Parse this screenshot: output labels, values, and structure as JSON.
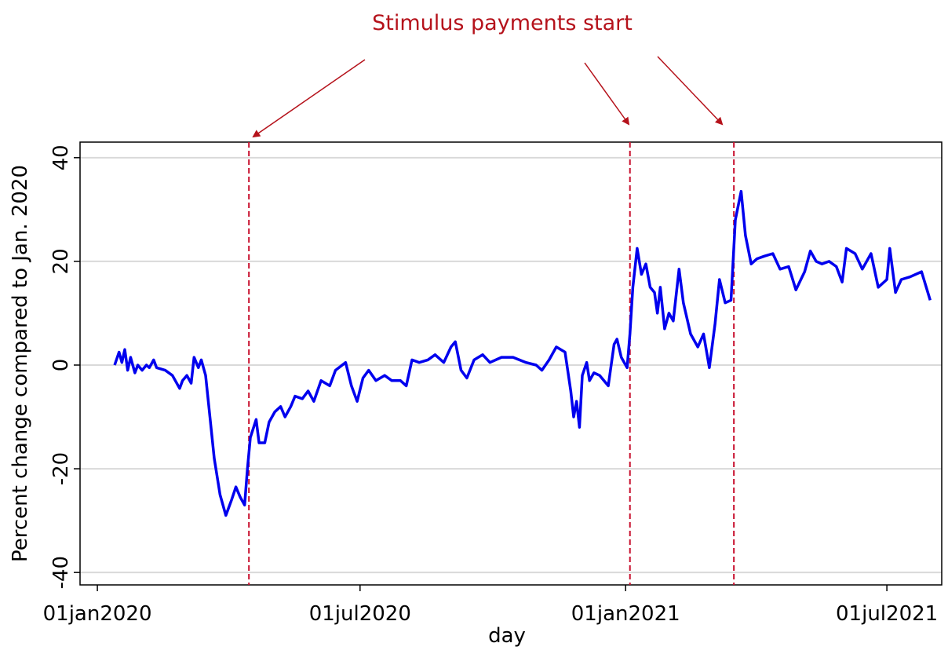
{
  "chart_data": {
    "type": "line",
    "annotation": "Stimulus payments start",
    "xlabel": "day",
    "ylabel": "Percent change compared to Jan. 2020",
    "xlim": [
      "2019-12-20",
      "2021-08-08"
    ],
    "xticks": [
      {
        "value": "2020-01-01",
        "label": "01jan2020"
      },
      {
        "value": "2020-07-01",
        "label": "01jul2020"
      },
      {
        "value": "2021-01-01",
        "label": "01jan2021"
      },
      {
        "value": "2021-07-01",
        "label": "01jul2021"
      }
    ],
    "ylim": [
      -42.4,
      43
    ],
    "yticks": [
      -40,
      -20,
      0,
      20,
      40
    ],
    "grid": true,
    "events": [
      "2020-04-15",
      "2021-01-04",
      "2021-03-17"
    ],
    "event_color": "#c8102e",
    "x": [
      "2020-01-13",
      "2020-01-16",
      "2020-01-18",
      "2020-01-20",
      "2020-01-22",
      "2020-01-24",
      "2020-01-27",
      "2020-01-29",
      "2020-02-01",
      "2020-02-04",
      "2020-02-06",
      "2020-02-09",
      "2020-02-11",
      "2020-02-17",
      "2020-02-22",
      "2020-02-27",
      "2020-02-29",
      "2020-03-03",
      "2020-03-06",
      "2020-03-08",
      "2020-03-11",
      "2020-03-13",
      "2020-03-16",
      "2020-03-19",
      "2020-03-22",
      "2020-03-26",
      "2020-03-30",
      "2020-04-03",
      "2020-04-06",
      "2020-04-09",
      "2020-04-12",
      "2020-04-14",
      "2020-04-16",
      "2020-04-20",
      "2020-04-22",
      "2020-04-26",
      "2020-04-29",
      "2020-05-03",
      "2020-05-07",
      "2020-05-10",
      "2020-05-14",
      "2020-05-17",
      "2020-05-22",
      "2020-05-26",
      "2020-05-30",
      "2020-06-04",
      "2020-06-10",
      "2020-06-14",
      "2020-06-21",
      "2020-06-25",
      "2020-06-29",
      "2020-07-03",
      "2020-07-07",
      "2020-07-12",
      "2020-07-18",
      "2020-07-23",
      "2020-07-29",
      "2020-08-02",
      "2020-08-06",
      "2020-08-11",
      "2020-08-17",
      "2020-08-22",
      "2020-08-28",
      "2020-09-02",
      "2020-09-05",
      "2020-09-09",
      "2020-09-13",
      "2020-09-18",
      "2020-09-24",
      "2020-09-29",
      "2020-10-07",
      "2020-10-15",
      "2020-10-24",
      "2020-10-31",
      "2020-11-04",
      "2020-11-09",
      "2020-11-14",
      "2020-11-20",
      "2020-11-24",
      "2020-11-26",
      "2020-11-28",
      "2020-11-30",
      "2020-12-02",
      "2020-12-05",
      "2020-12-07",
      "2020-12-10",
      "2020-12-14",
      "2020-12-20",
      "2020-12-24",
      "2020-12-26",
      "2020-12-29",
      "2021-01-02",
      "2021-01-04",
      "2021-01-06",
      "2021-01-09",
      "2021-01-12",
      "2021-01-15",
      "2021-01-18",
      "2021-01-21",
      "2021-01-23",
      "2021-01-25",
      "2021-01-28",
      "2021-01-31",
      "2021-02-03",
      "2021-02-07",
      "2021-02-10",
      "2021-02-15",
      "2021-02-20",
      "2021-02-24",
      "2021-02-28",
      "2021-03-04",
      "2021-03-07",
      "2021-03-11",
      "2021-03-15",
      "2021-03-18",
      "2021-03-22",
      "2021-03-25",
      "2021-03-29",
      "2021-04-02",
      "2021-04-07",
      "2021-04-13",
      "2021-04-18",
      "2021-04-24",
      "2021-04-29",
      "2021-05-05",
      "2021-05-09",
      "2021-05-13",
      "2021-05-17",
      "2021-05-22",
      "2021-05-27",
      "2021-05-31",
      "2021-06-03",
      "2021-06-09",
      "2021-06-14",
      "2021-06-20",
      "2021-06-25",
      "2021-07-01",
      "2021-07-03",
      "2021-07-07",
      "2021-07-11",
      "2021-07-17",
      "2021-07-25",
      "2021-07-31"
    ],
    "series": [
      {
        "name": "Percent change",
        "color": "#0000ee",
        "values": [
          0,
          2.5,
          0.5,
          3,
          -1,
          1.5,
          -1.5,
          0,
          -1,
          0,
          -0.5,
          1,
          -0.5,
          -1,
          -2,
          -4.5,
          -3,
          -2,
          -3.5,
          1.5,
          -0.5,
          1,
          -2,
          -10,
          -18,
          -25,
          -29,
          -26,
          -23.5,
          -25.5,
          -27,
          -20,
          -14,
          -10.5,
          -15,
          -15,
          -11,
          -9,
          -8,
          -10,
          -8,
          -6,
          -6.5,
          -5,
          -7,
          -3,
          -4,
          -1,
          0.5,
          -4,
          -7,
          -2.5,
          -1,
          -3,
          -2,
          -3,
          -3,
          -4,
          1,
          0.5,
          1,
          2,
          0.5,
          3.5,
          4.5,
          -1,
          -2.5,
          1,
          2,
          0.5,
          1.5,
          1.5,
          0.5,
          0,
          -1,
          1,
          3.5,
          2.5,
          -5,
          -10,
          -7,
          -12,
          -2,
          0.5,
          -3,
          -1.5,
          -2,
          -4,
          4,
          5,
          1.5,
          -0.5,
          6,
          15,
          22.5,
          17.5,
          19.5,
          15,
          14,
          10,
          15,
          7,
          10,
          8.5,
          18.5,
          12,
          6,
          3.5,
          6,
          -0.5,
          8,
          16.5,
          12,
          12.5,
          28,
          33.5,
          25,
          19.5,
          20.5,
          21,
          21.5,
          18.5,
          19,
          14.5,
          18,
          22,
          20,
          19.5,
          20,
          19,
          16,
          22.5,
          21.5,
          18.5,
          21.5,
          15,
          16.5,
          22.5,
          14,
          16.5,
          17,
          18,
          12.5
        ]
      }
    ]
  }
}
